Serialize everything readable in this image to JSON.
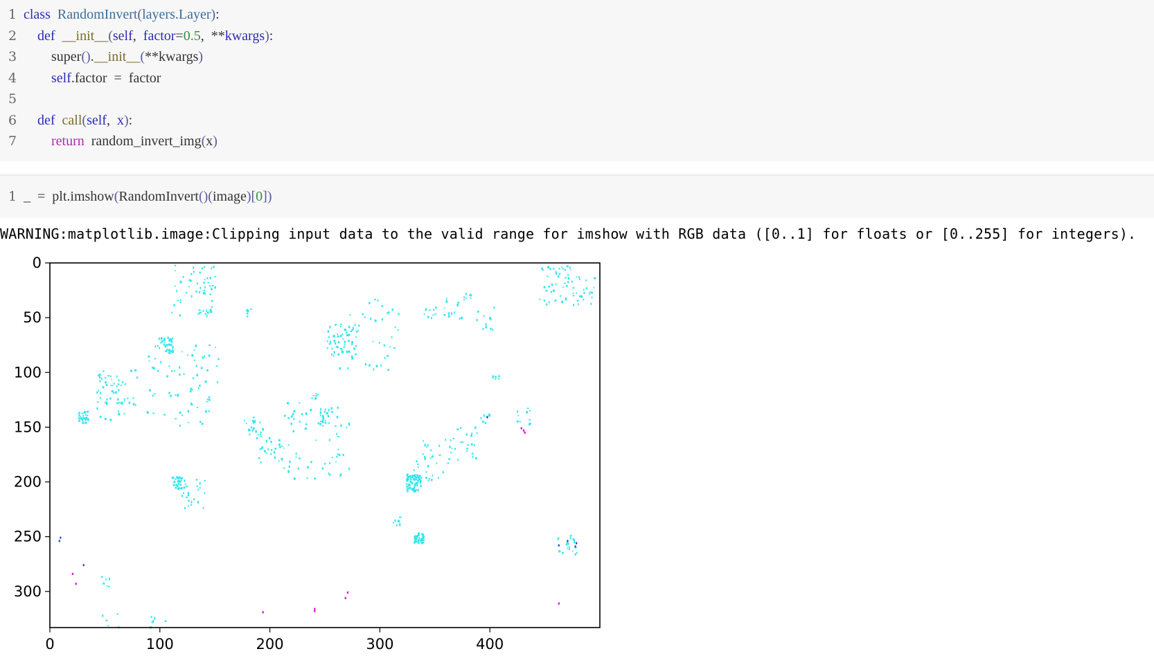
{
  "cell1": {
    "lines": [
      {
        "n": "1",
        "parts": [
          [
            "kw",
            "class"
          ],
          [
            "",
            "  "
          ],
          [
            "cls",
            "RandomInvert"
          ],
          [
            "paren",
            "("
          ],
          [
            "cls",
            "layers."
          ],
          [
            "cls",
            "Layer"
          ],
          [
            "paren",
            ")"
          ],
          [
            "",
            ":"
          ]
        ]
      },
      {
        "n": "2",
        "parts": [
          [
            "",
            "    "
          ],
          [
            "kw",
            "def"
          ],
          [
            "",
            "  "
          ],
          [
            "fn",
            "__init__"
          ],
          [
            "paren",
            "("
          ],
          [
            "self",
            "self"
          ],
          [
            "",
            ",  "
          ],
          [
            "self",
            "factor"
          ],
          [
            "",
            "="
          ],
          [
            "num",
            "0.5"
          ],
          [
            "",
            ",  "
          ],
          [
            "",
            "**"
          ],
          [
            "self",
            "kwargs"
          ],
          [
            "paren",
            ")"
          ],
          [
            "",
            ":"
          ]
        ]
      },
      {
        "n": "3",
        "parts": [
          [
            "",
            "        "
          ],
          [
            "",
            "super"
          ],
          [
            "paren",
            "()"
          ],
          [
            "",
            "."
          ],
          [
            "fn",
            "__init__"
          ],
          [
            "paren",
            "("
          ],
          [
            "",
            "**kwargs"
          ],
          [
            "paren",
            ")"
          ]
        ]
      },
      {
        "n": "4",
        "parts": [
          [
            "",
            "        "
          ],
          [
            "self",
            "self"
          ],
          [
            "",
            ".factor  =  factor"
          ]
        ]
      },
      {
        "n": "5",
        "parts": []
      },
      {
        "n": "6",
        "parts": [
          [
            "",
            "    "
          ],
          [
            "kw",
            "def"
          ],
          [
            "",
            "  "
          ],
          [
            "fn",
            "call"
          ],
          [
            "paren",
            "("
          ],
          [
            "self",
            "self"
          ],
          [
            "",
            ",  "
          ],
          [
            "self",
            "x"
          ],
          [
            "paren",
            ")"
          ],
          [
            "",
            ":"
          ]
        ]
      },
      {
        "n": "7",
        "parts": [
          [
            "",
            "        "
          ],
          [
            "ret",
            "return"
          ],
          [
            "",
            "  random_invert_img"
          ],
          [
            "paren",
            "("
          ],
          [
            "",
            "x"
          ],
          [
            "paren",
            ")"
          ]
        ]
      }
    ]
  },
  "cell2": {
    "lines": [
      {
        "n": "1",
        "parts": [
          [
            "",
            "_  =  plt."
          ],
          [
            "",
            "imshow"
          ],
          [
            "paren",
            "("
          ],
          [
            "",
            "RandomInvert"
          ],
          [
            "paren",
            "()"
          ],
          [
            "paren",
            "("
          ],
          [
            "",
            "image"
          ],
          [
            "paren",
            ")"
          ],
          [
            "paren",
            "["
          ],
          [
            "num",
            "0"
          ],
          [
            "paren",
            "]"
          ],
          [
            "paren",
            ")"
          ]
        ]
      }
    ]
  },
  "warning": "WARNING:matplotlib.image:Clipping input data to the valid range for imshow with RGB data ([0..1] for floats or [0..255] for integers).",
  "chart_data": {
    "type": "heatmap",
    "title": "",
    "xlabel": "",
    "ylabel": "",
    "xlim": [
      0,
      500
    ],
    "ylim": [
      333,
      0
    ],
    "x_ticks": [
      "0",
      "100",
      "200",
      "300",
      "400"
    ],
    "y_ticks": [
      "0",
      "50",
      "100",
      "150",
      "200",
      "250",
      "300"
    ],
    "x_tick_values": [
      0,
      100,
      200,
      300,
      400
    ],
    "y_tick_values": [
      0,
      50,
      100,
      150,
      200,
      250,
      300
    ],
    "background_color": "#ffffff",
    "colors": {
      "cyan": "#33e6ee",
      "magenta": "#e020d0",
      "blue": "#2a40d0"
    }
  }
}
